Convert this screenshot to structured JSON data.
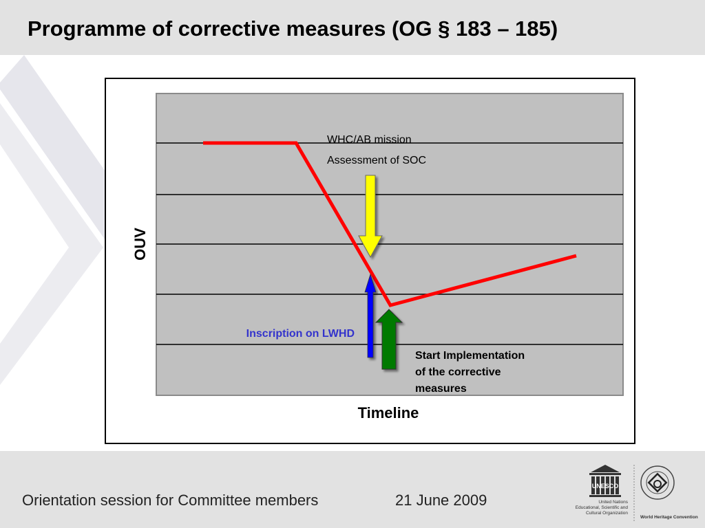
{
  "slide": {
    "title": "Programme of corrective measures (OG § 183 – 185)"
  },
  "diagram": {
    "y_axis_label": "OUV",
    "x_axis_label": "Timeline",
    "annotations": {
      "whc_mission": "WHC/AB mission",
      "soc_assessment": "Assessment of SOC",
      "inscription": "Inscription on LWHD",
      "implementation_line1": "Start Implementation",
      "implementation_line2": "of the corrective",
      "implementation_line3": "measures"
    },
    "colors": {
      "plot_background": "#c0c0c0",
      "trend_line": "#ff0000",
      "soc_arrow": "#ffff00",
      "inscription_arrow": "#0000ff",
      "implementation_arrow": "#007a00",
      "inscription_text": "#3333cc"
    }
  },
  "footer": {
    "session": "Orientation session for Committee members",
    "date": "21 June 2009"
  },
  "logos": {
    "unesco_wordmark": "UNESCO",
    "unesco_caption_line1": "United Nations",
    "unesco_caption_line2": "Educational, Scientific and",
    "unesco_caption_line3": "Cultural Organization",
    "whc_caption": "World Heritage Convention"
  }
}
